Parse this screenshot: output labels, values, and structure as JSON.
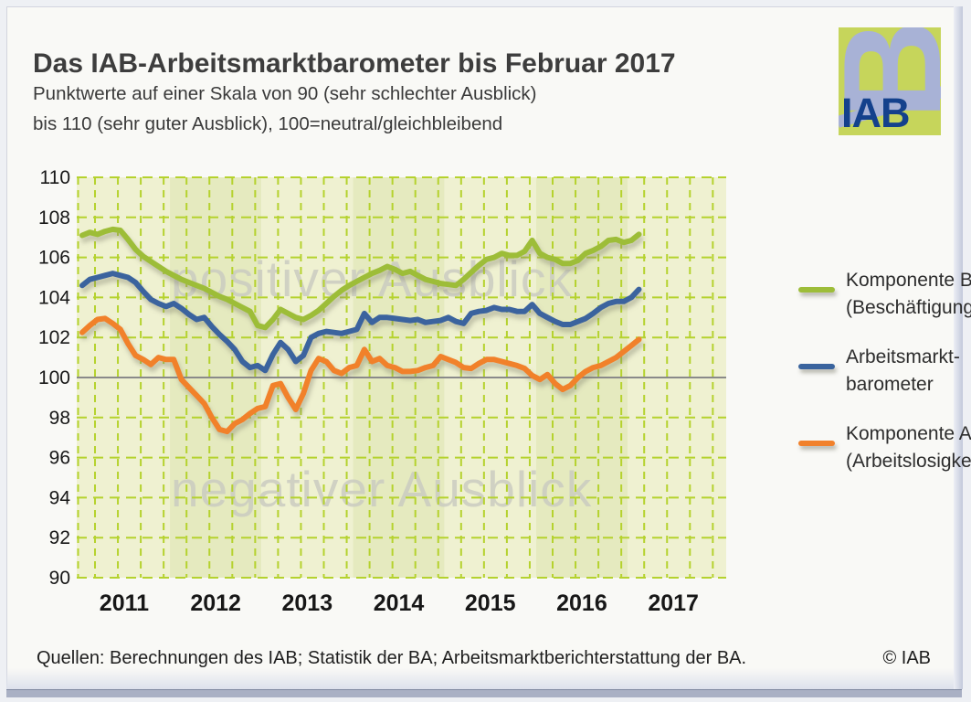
{
  "header": {
    "title": "Das IAB-Arbeitsmarktbarometer bis Februar 2017",
    "subtitle_lines": [
      "Punktwerte auf einer Skala von 90 (sehr schlechter Ausblick)",
      "bis 110 (sehr guter Ausblick), 100=neutral/gleichbleibend"
    ]
  },
  "logo": {
    "text": "IAB",
    "letter": "B",
    "bg_color": "#c6d55b",
    "letter_color": "#a8b2d6",
    "text_color": "#14418c"
  },
  "chart_data": {
    "type": "line",
    "title": "Das IAB-Arbeitsmarktbarometer bis Februar 2017",
    "x_unit": "month",
    "x_start": "2011-01",
    "x_end": "2017-02",
    "points_per_series": 74,
    "ylim": [
      90,
      110
    ],
    "y_ticks": [
      110,
      108,
      106,
      104,
      102,
      100,
      98,
      96,
      94,
      92,
      90
    ],
    "x_ticks": [
      "2011",
      "2012",
      "2013",
      "2014",
      "2015",
      "2016",
      "2017"
    ],
    "baseline": 100,
    "grid": "dashed yellow-green, horizontal every 2 units, vertical quarterly; solid grey line at 100",
    "watermark_positive": "positiver Ausblick",
    "watermark_negative": "negativer Ausblick",
    "watermark_color": "#cbccc1",
    "band_color_odd_year": "#eff1d1",
    "band_color_even_year": "#e5eabf",
    "gridline_color": "#b5d22e",
    "baseline_color": "#8a8a8a",
    "series": [
      {
        "id": "komponente-b",
        "name": "Komponente B (Beschäftigung)",
        "color": "#9dbd39",
        "values": [
          107.1,
          107.25,
          107.15,
          107.3,
          107.4,
          107.35,
          106.9,
          106.4,
          106.05,
          105.8,
          105.55,
          105.3,
          105.1,
          104.9,
          104.75,
          104.6,
          104.45,
          104.25,
          104.05,
          103.9,
          103.7,
          103.5,
          103.3,
          102.6,
          102.5,
          102.9,
          103.4,
          103.2,
          103.0,
          102.9,
          103.1,
          103.35,
          103.7,
          104.05,
          104.35,
          104.6,
          104.8,
          105.0,
          105.2,
          105.35,
          105.55,
          105.4,
          105.2,
          105.3,
          105.1,
          104.9,
          104.8,
          104.7,
          104.65,
          104.6,
          104.9,
          105.25,
          105.6,
          105.9,
          106.0,
          106.2,
          106.1,
          106.1,
          106.3,
          106.85,
          106.2,
          106.0,
          105.9,
          105.7,
          105.7,
          105.85,
          106.2,
          106.35,
          106.55,
          106.85,
          106.9,
          106.75,
          106.85,
          107.15
        ]
      },
      {
        "id": "arbeitsmarktbarometer",
        "name": "Arbeitsmarktbarometer",
        "color": "#3a649e",
        "values": [
          104.6,
          104.9,
          105.0,
          105.1,
          105.2,
          105.1,
          105.0,
          104.75,
          104.3,
          103.9,
          103.7,
          103.55,
          103.7,
          103.45,
          103.15,
          102.9,
          103.0,
          102.55,
          102.15,
          101.8,
          101.4,
          100.8,
          100.5,
          100.6,
          100.35,
          101.15,
          101.75,
          101.4,
          100.8,
          101.1,
          102.0,
          102.2,
          102.3,
          102.25,
          102.2,
          102.3,
          102.4,
          103.2,
          102.75,
          103.0,
          103.0,
          102.95,
          102.9,
          102.85,
          102.9,
          102.75,
          102.8,
          102.85,
          103.0,
          102.8,
          102.7,
          103.2,
          103.3,
          103.35,
          103.5,
          103.4,
          103.4,
          103.3,
          103.3,
          103.65,
          103.2,
          103.0,
          102.8,
          102.65,
          102.65,
          102.8,
          102.95,
          103.2,
          103.5,
          103.7,
          103.8,
          103.8,
          104.0,
          104.4
        ]
      },
      {
        "id": "komponente-a",
        "name": "Komponente A (Arbeitslosigkeit)",
        "color": "#f1812b",
        "values": [
          102.25,
          102.6,
          102.9,
          102.95,
          102.7,
          102.4,
          101.7,
          101.1,
          100.9,
          100.65,
          101.0,
          100.9,
          100.9,
          99.9,
          99.5,
          99.1,
          98.7,
          98.0,
          97.4,
          97.3,
          97.7,
          97.9,
          98.2,
          98.45,
          98.55,
          99.6,
          99.7,
          99.0,
          98.4,
          99.2,
          100.35,
          100.95,
          100.8,
          100.35,
          100.2,
          100.5,
          100.6,
          101.4,
          100.8,
          100.95,
          100.6,
          100.5,
          100.3,
          100.3,
          100.35,
          100.5,
          100.6,
          101.05,
          100.9,
          100.75,
          100.5,
          100.45,
          100.7,
          100.9,
          100.9,
          100.8,
          100.7,
          100.6,
          100.45,
          100.1,
          99.9,
          100.15,
          99.7,
          99.4,
          99.6,
          100.0,
          100.3,
          100.5,
          100.6,
          100.8,
          101.0,
          101.3,
          101.6,
          101.9
        ]
      }
    ]
  },
  "legend": {
    "items": [
      {
        "line1": "Komponente B",
        "line2": "(Beschäftigung)",
        "color": "#9dbd39"
      },
      {
        "line1": "Arbeitsmarkt-",
        "line2": "barometer",
        "color": "#3a649e"
      },
      {
        "line1": "Komponente A",
        "line2": "(Arbeitslosigkeit)",
        "color": "#f1812b"
      }
    ]
  },
  "footer": {
    "sources": "Quellen: Berechnungen des IAB; Statistik der BA; Arbeitsmarktberichterstattung der BA.",
    "copyright": "© IAB"
  }
}
